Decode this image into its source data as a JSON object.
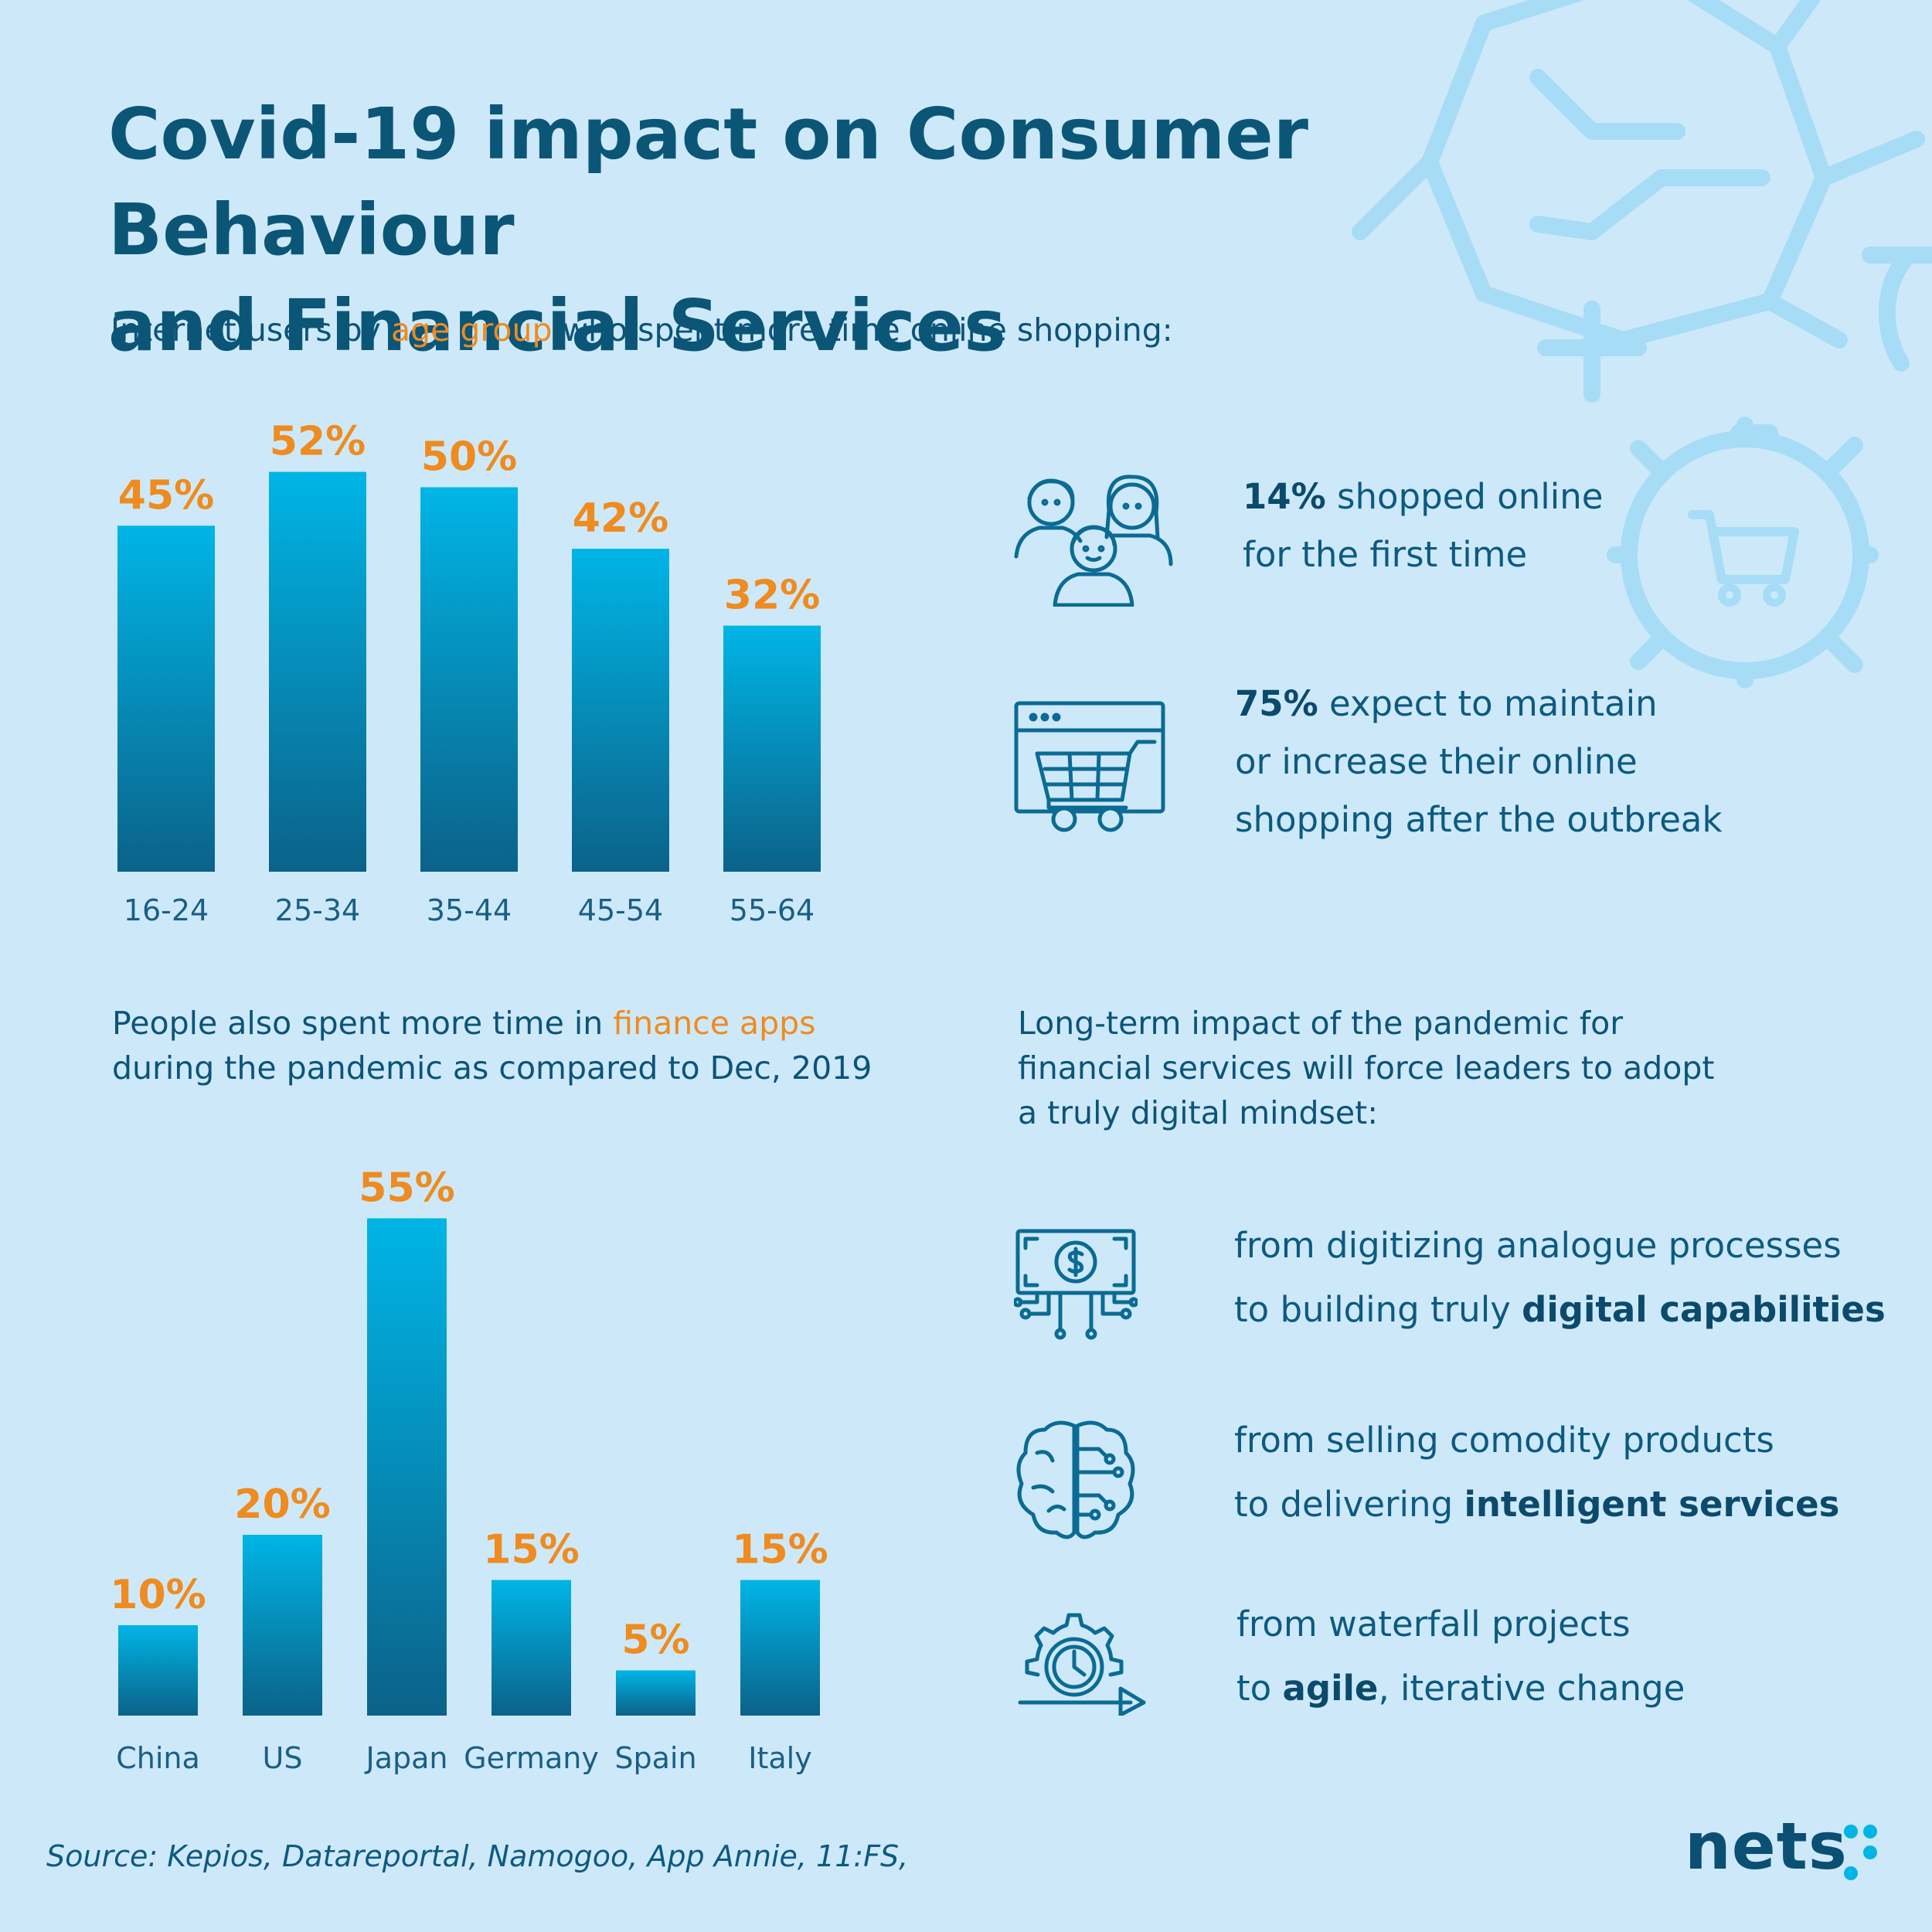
{
  "title": {
    "line1": "Covid-19 impact on Consumer Behaviour",
    "line2": "and Financial Services"
  },
  "section1": {
    "prefix": "Internet users by ",
    "accent": "age group",
    "suffix": " who spent more time online shopping:"
  },
  "section2": {
    "line1_prefix": "People also spent more time in ",
    "line1_accent": "finance apps",
    "line2": "during the pandemic as compared to Dec, 2019"
  },
  "section3": {
    "line1": "Long-term impact of the pandemic for",
    "line2": "financial services will force leaders to adopt",
    "line3": "a truly digital mindset:"
  },
  "stats": [
    {
      "bold": "14%",
      "line1_rest": " shopped online",
      "line2": "for the first time",
      "icon": "people-group-icon"
    },
    {
      "bold": "75%",
      "line1_rest": " expect to maintain",
      "line2": "or increase their online",
      "line3": "shopping after the outbreak",
      "icon": "web-shopping-cart-icon"
    }
  ],
  "shifts": [
    {
      "line1": "from digitizing analogue processes",
      "line2_prefix": "to building truly ",
      "line2_bold": "digital capabilities",
      "line2_suffix": "",
      "icon": "digital-money-icon"
    },
    {
      "line1": "from selling comodity products",
      "line2_prefix": "to delivering ",
      "line2_bold": "intelligent services",
      "line2_suffix": "",
      "icon": "brain-circuit-icon"
    },
    {
      "line1": "from waterfall projects",
      "line2_prefix": "to ",
      "line2_bold": "agile",
      "line2_suffix": ", iterative change",
      "icon": "gear-clock-arrow-icon"
    }
  ],
  "chart_data": [
    {
      "type": "bar",
      "categories": [
        "16-24",
        "25-34",
        "35-44",
        "45-54",
        "55-64"
      ],
      "values": [
        45,
        52,
        50,
        42,
        32
      ],
      "value_labels": [
        "45%",
        "52%",
        "50%",
        "42%",
        "32%"
      ],
      "unit": "%"
    },
    {
      "type": "bar",
      "categories": [
        "China",
        "US",
        "Japan",
        "Germany",
        "Spain",
        "Italy"
      ],
      "values": [
        10,
        20,
        55,
        15,
        5,
        15
      ],
      "value_labels": [
        "10%",
        "20%",
        "55%",
        "15%",
        "5%",
        "15%"
      ],
      "unit": "%"
    }
  ],
  "source": "Source: Kepios, Datareportal, Namogoo, App Annie, 11:FS,",
  "logo": "nets",
  "colors": {
    "background": "#cde9f9",
    "bar_top": "#00b5e6",
    "bar_bottom": "#0b6289",
    "accent": "#ef8b1f",
    "text": "#0b4f73",
    "decor": "#a7dcf6"
  }
}
